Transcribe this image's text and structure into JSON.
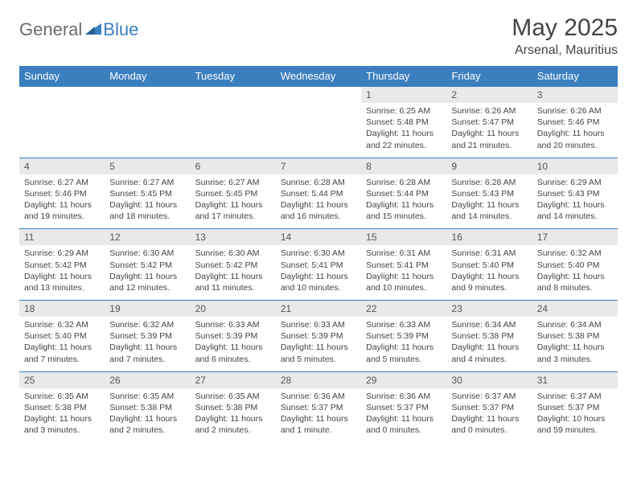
{
  "logo": {
    "t1": "General",
    "t2": "Blue"
  },
  "title": "May 2025",
  "location": "Arsenal, Mauritius",
  "colors": {
    "header_bg": "#3b7fbf",
    "header_text": "#ffffff",
    "daynum_bg": "#e9e9e9",
    "text": "#444444",
    "logo_gray": "#6a6a6a",
    "logo_blue": "#3b7fbf"
  },
  "dayNames": [
    "Sunday",
    "Monday",
    "Tuesday",
    "Wednesday",
    "Thursday",
    "Friday",
    "Saturday"
  ],
  "weeks": [
    [
      null,
      null,
      null,
      null,
      {
        "n": "1",
        "sr": "6:25 AM",
        "ss": "5:48 PM",
        "dl": "11 hours and 22 minutes."
      },
      {
        "n": "2",
        "sr": "6:26 AM",
        "ss": "5:47 PM",
        "dl": "11 hours and 21 minutes."
      },
      {
        "n": "3",
        "sr": "6:26 AM",
        "ss": "5:46 PM",
        "dl": "11 hours and 20 minutes."
      }
    ],
    [
      {
        "n": "4",
        "sr": "6:27 AM",
        "ss": "5:46 PM",
        "dl": "11 hours and 19 minutes."
      },
      {
        "n": "5",
        "sr": "6:27 AM",
        "ss": "5:45 PM",
        "dl": "11 hours and 18 minutes."
      },
      {
        "n": "6",
        "sr": "6:27 AM",
        "ss": "5:45 PM",
        "dl": "11 hours and 17 minutes."
      },
      {
        "n": "7",
        "sr": "6:28 AM",
        "ss": "5:44 PM",
        "dl": "11 hours and 16 minutes."
      },
      {
        "n": "8",
        "sr": "6:28 AM",
        "ss": "5:44 PM",
        "dl": "11 hours and 15 minutes."
      },
      {
        "n": "9",
        "sr": "6:28 AM",
        "ss": "5:43 PM",
        "dl": "11 hours and 14 minutes."
      },
      {
        "n": "10",
        "sr": "6:29 AM",
        "ss": "5:43 PM",
        "dl": "11 hours and 14 minutes."
      }
    ],
    [
      {
        "n": "11",
        "sr": "6:29 AM",
        "ss": "5:42 PM",
        "dl": "11 hours and 13 minutes."
      },
      {
        "n": "12",
        "sr": "6:30 AM",
        "ss": "5:42 PM",
        "dl": "11 hours and 12 minutes."
      },
      {
        "n": "13",
        "sr": "6:30 AM",
        "ss": "5:42 PM",
        "dl": "11 hours and 11 minutes."
      },
      {
        "n": "14",
        "sr": "6:30 AM",
        "ss": "5:41 PM",
        "dl": "11 hours and 10 minutes."
      },
      {
        "n": "15",
        "sr": "6:31 AM",
        "ss": "5:41 PM",
        "dl": "11 hours and 10 minutes."
      },
      {
        "n": "16",
        "sr": "6:31 AM",
        "ss": "5:40 PM",
        "dl": "11 hours and 9 minutes."
      },
      {
        "n": "17",
        "sr": "6:32 AM",
        "ss": "5:40 PM",
        "dl": "11 hours and 8 minutes."
      }
    ],
    [
      {
        "n": "18",
        "sr": "6:32 AM",
        "ss": "5:40 PM",
        "dl": "11 hours and 7 minutes."
      },
      {
        "n": "19",
        "sr": "6:32 AM",
        "ss": "5:39 PM",
        "dl": "11 hours and 7 minutes."
      },
      {
        "n": "20",
        "sr": "6:33 AM",
        "ss": "5:39 PM",
        "dl": "11 hours and 6 minutes."
      },
      {
        "n": "21",
        "sr": "6:33 AM",
        "ss": "5:39 PM",
        "dl": "11 hours and 5 minutes."
      },
      {
        "n": "22",
        "sr": "6:33 AM",
        "ss": "5:39 PM",
        "dl": "11 hours and 5 minutes."
      },
      {
        "n": "23",
        "sr": "6:34 AM",
        "ss": "5:38 PM",
        "dl": "11 hours and 4 minutes."
      },
      {
        "n": "24",
        "sr": "6:34 AM",
        "ss": "5:38 PM",
        "dl": "11 hours and 3 minutes."
      }
    ],
    [
      {
        "n": "25",
        "sr": "6:35 AM",
        "ss": "5:38 PM",
        "dl": "11 hours and 3 minutes."
      },
      {
        "n": "26",
        "sr": "6:35 AM",
        "ss": "5:38 PM",
        "dl": "11 hours and 2 minutes."
      },
      {
        "n": "27",
        "sr": "6:35 AM",
        "ss": "5:38 PM",
        "dl": "11 hours and 2 minutes."
      },
      {
        "n": "28",
        "sr": "6:36 AM",
        "ss": "5:37 PM",
        "dl": "11 hours and 1 minute."
      },
      {
        "n": "29",
        "sr": "6:36 AM",
        "ss": "5:37 PM",
        "dl": "11 hours and 0 minutes."
      },
      {
        "n": "30",
        "sr": "6:37 AM",
        "ss": "5:37 PM",
        "dl": "11 hours and 0 minutes."
      },
      {
        "n": "31",
        "sr": "6:37 AM",
        "ss": "5:37 PM",
        "dl": "10 hours and 59 minutes."
      }
    ]
  ],
  "labels": {
    "sunrise": "Sunrise: ",
    "sunset": "Sunset: ",
    "daylight": "Daylight: "
  }
}
